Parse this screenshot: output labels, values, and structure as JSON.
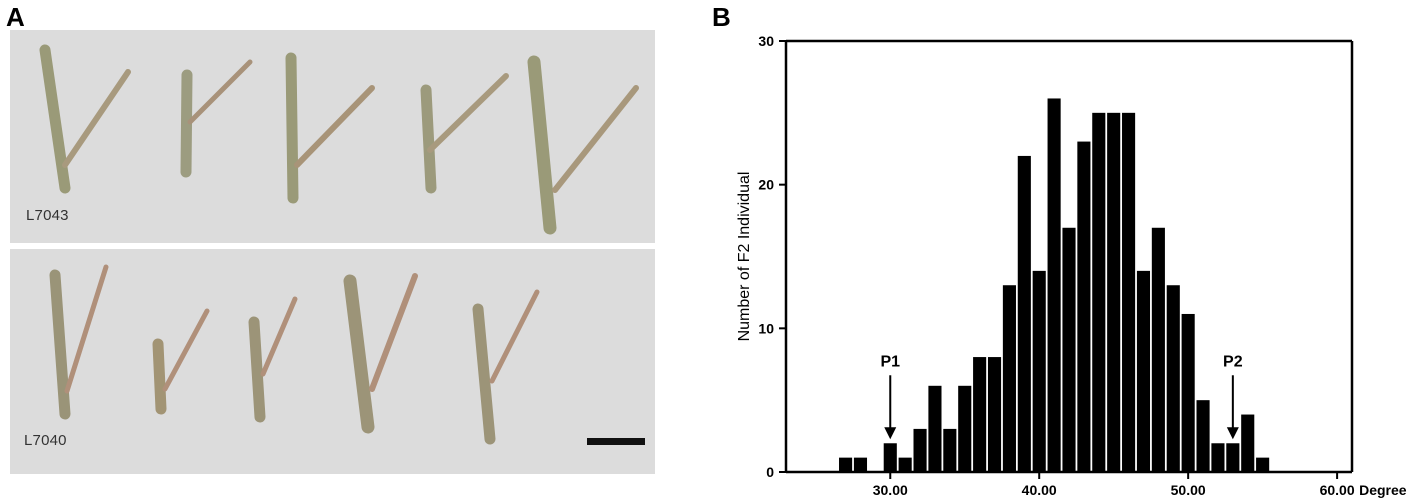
{
  "panels": {
    "a_label": "A",
    "b_label": "B",
    "photo_labels": [
      "L7043",
      "L7040"
    ]
  },
  "chart_data": {
    "type": "bar",
    "title": "",
    "xlabel": "Degree",
    "ylabel": "Number of F2 Individual",
    "x": [
      27,
      28,
      30,
      31,
      32,
      33,
      34,
      35,
      36,
      37,
      38,
      39,
      40,
      41,
      42,
      43,
      44,
      45,
      46,
      47,
      48,
      49,
      50,
      51,
      52,
      53,
      54,
      55
    ],
    "values": [
      1,
      1,
      2,
      1,
      3,
      6,
      3,
      6,
      8,
      8,
      13,
      22,
      14,
      26,
      17,
      23,
      25,
      25,
      25,
      14,
      17,
      13,
      11,
      5,
      2,
      2,
      4,
      1
    ],
    "xlim": [
      23,
      61
    ],
    "ylim": [
      0,
      30
    ],
    "x_ticks": [
      "30.00",
      "40.00",
      "50.00",
      "60.00"
    ],
    "x_tick_values": [
      30,
      40,
      50,
      60
    ],
    "y_ticks": [
      "0",
      "10",
      "20",
      "30"
    ],
    "y_tick_values": [
      0,
      10,
      20,
      30
    ],
    "annotations": [
      {
        "text": "P1",
        "x": 30,
        "y": 2
      },
      {
        "text": "P2",
        "x": 53,
        "y": 2
      }
    ],
    "bar_color": "#000000",
    "grid": false,
    "legend": "none"
  }
}
